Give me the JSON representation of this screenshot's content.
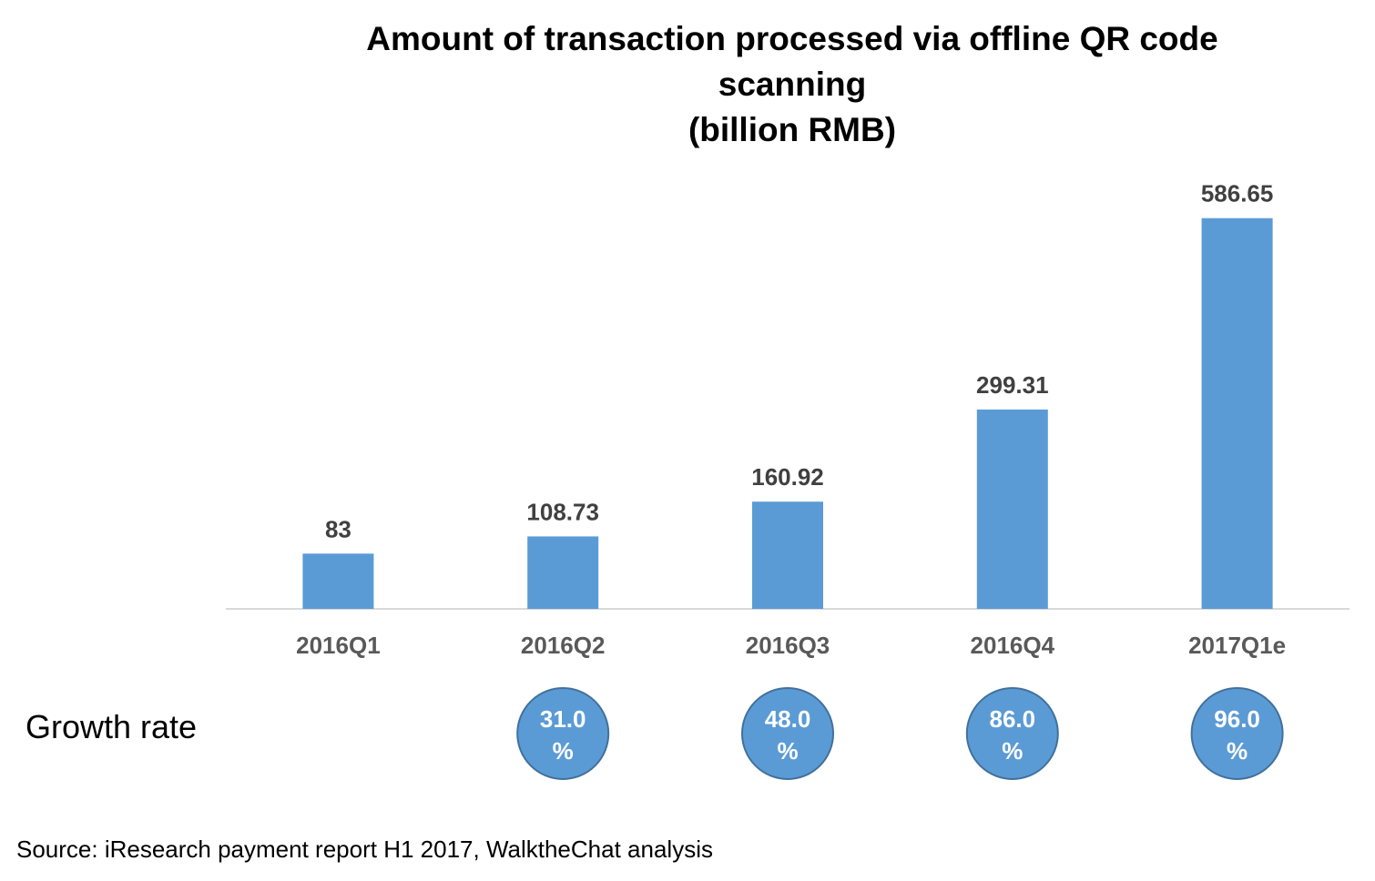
{
  "chart_data": {
    "type": "bar",
    "title_lines": [
      "Amount of transaction processed via offline QR code",
      "scanning",
      "(billion RMB)"
    ],
    "categories": [
      "2016Q1",
      "2016Q2",
      "2016Q3",
      "2016Q4",
      "2017Q1e"
    ],
    "values": [
      83,
      108.73,
      160.92,
      299.31,
      586.65
    ],
    "value_labels": [
      "83",
      "108.73",
      "160.92",
      "299.31",
      "586.65"
    ],
    "bar_color": "#5B9BD5",
    "ylim": [
      0,
      630
    ],
    "grid": false,
    "legend": "none"
  },
  "growth": {
    "label": "Growth rate",
    "rates": [
      {
        "category": "2016Q2",
        "value": 31.0,
        "line1": "31.0",
        "line2": "%"
      },
      {
        "category": "2016Q3",
        "value": 48.0,
        "line1": "48.0",
        "line2": "%"
      },
      {
        "category": "2016Q4",
        "value": 86.0,
        "line1": "86.0",
        "line2": "%"
      },
      {
        "category": "2017Q1e",
        "value": 96.0,
        "line1": "96.0",
        "line2": "%"
      }
    ],
    "circle_fill": "#5B9BD5",
    "circle_stroke": "#41719C"
  },
  "source": "Source: iResearch payment report H1 2017, WalktheChat analysis"
}
